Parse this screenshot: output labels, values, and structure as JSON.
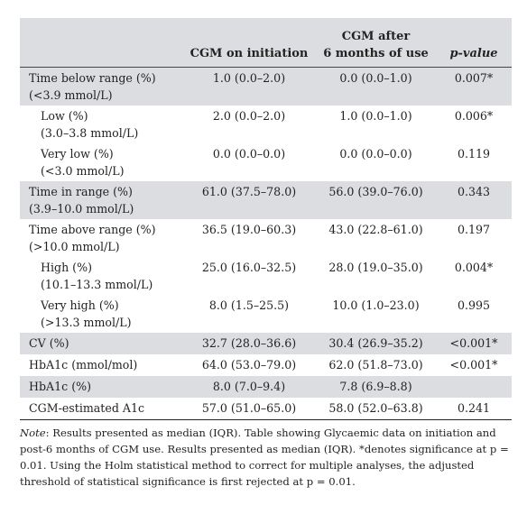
{
  "table": {
    "headers": [
      "",
      "CGM on initiation",
      "CGM after\n6 months of use",
      "p-value"
    ],
    "rows": [
      {
        "label": "Time below range (%)\n(<3.9 mmol/L)",
        "init": "1.0 (0.0–2.0)",
        "after": "0.0 (0.0–1.0)",
        "p": "0.007*"
      },
      {
        "label": "Low (%)\n(3.0–3.8 mmol/L)",
        "init": "2.0 (0.0–2.0)",
        "after": "1.0 (0.0–1.0)",
        "p": "0.006*"
      },
      {
        "label": "Very low (%)\n(<3.0 mmol/L)",
        "init": "0.0 (0.0–0.0)",
        "after": "0.0 (0.0–0.0)",
        "p": "0.119"
      },
      {
        "label": "Time in range (%)\n(3.9–10.0 mmol/L)",
        "init": "61.0 (37.5–78.0)",
        "after": "56.0 (39.0–76.0)",
        "p": "0.343"
      },
      {
        "label": "Time above range (%)\n(>10.0 mmol/L)",
        "init": "36.5 (19.0–60.3)",
        "after": "43.0 (22.8–61.0)",
        "p": "0.197"
      },
      {
        "label": "High (%)\n(10.1–13.3 mmol/L)",
        "init": "25.0 (16.0–32.5)",
        "after": "28.0 (19.0–35.0)",
        "p": "0.004*"
      },
      {
        "label": "Very high (%)\n(>13.3 mmol/L)",
        "init": "8.0 (1.5–25.5)",
        "after": "10.0 (1.0–23.0)",
        "p": "0.995"
      },
      {
        "label": "CV (%)",
        "init": "32.7 (28.0–36.6)",
        "after": "30.4 (26.9–35.2)",
        "p": "<0.001*"
      },
      {
        "label": "HbA1c (mmol/mol)",
        "init": "64.0 (53.0–79.0)",
        "after": "62.0 (51.8–73.0)",
        "p": "<0.001*"
      },
      {
        "label": "HbA1c (%)",
        "init": "8.0 (7.0–9.4)",
        "after": "7.8 (6.9–8.8)",
        "p": ""
      },
      {
        "label": "CGM-estimated A1c",
        "init": "57.0 (51.0–65.0)",
        "after": "58.0 (52.0–63.8)",
        "p": "0.241"
      }
    ]
  },
  "note": {
    "prefix": "Note",
    "text": ": Results presented as median (IQR). Table showing Glycaemic data on initiation and post-6 months of CGM use. Results presented as median (IQR). *denotes significance at p = 0.01. Using the Holm statistical method to correct for multiple analyses, the adjusted threshold of statistical significance is first rejected at p = 0.01."
  }
}
